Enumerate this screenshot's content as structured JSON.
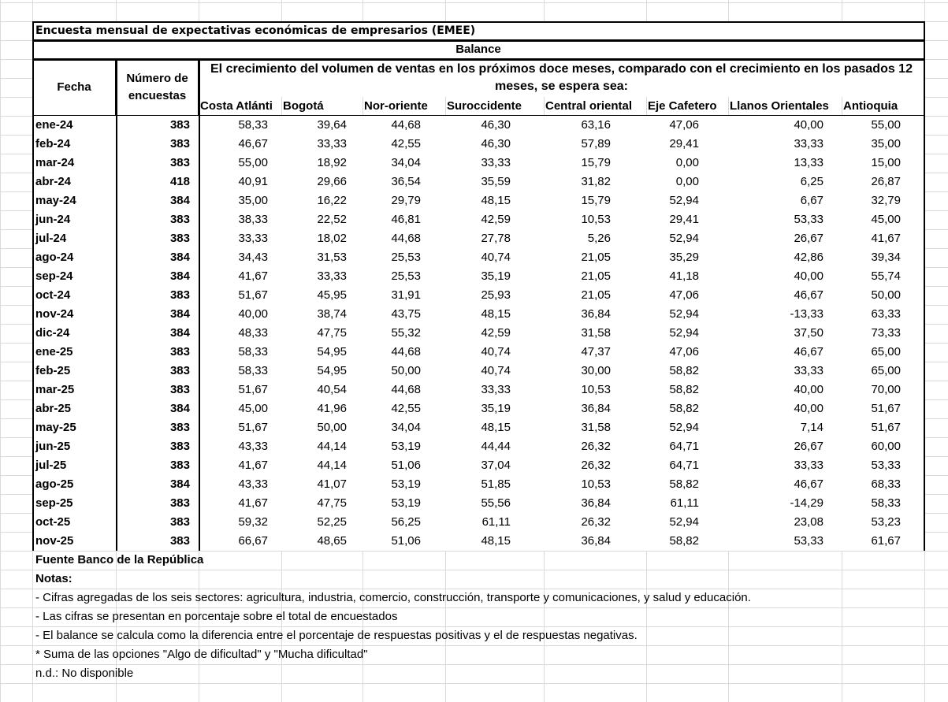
{
  "title": "Encuesta mensual de expectativas económicas de empresarios (EMEE)",
  "table": {
    "group_header": "Balance",
    "columns": [
      "Fecha",
      "Número de encuestas"
    ],
    "subheader": "El crecimiento del volumen de ventas en los próximos doce meses, comparado con el crecimiento en los pasados 12 meses, se espera sea:",
    "regions": [
      "Costa Atlánti",
      "Bogotá",
      "Nor-oriente",
      "Suroccidente",
      "Central oriental",
      "Eje Cafetero",
      "Llanos Orientales",
      "Antioquia"
    ],
    "rows": [
      [
        "ene-24",
        383,
        "58,33",
        "39,64",
        "44,68",
        "46,30",
        "63,16",
        "47,06",
        "40,00",
        "55,00"
      ],
      [
        "feb-24",
        383,
        "46,67",
        "33,33",
        "42,55",
        "46,30",
        "57,89",
        "29,41",
        "33,33",
        "35,00"
      ],
      [
        "mar-24",
        383,
        "55,00",
        "18,92",
        "34,04",
        "33,33",
        "15,79",
        "0,00",
        "13,33",
        "15,00"
      ],
      [
        "abr-24",
        418,
        "40,91",
        "29,66",
        "36,54",
        "35,59",
        "31,82",
        "0,00",
        "6,25",
        "26,87"
      ],
      [
        "may-24",
        384,
        "35,00",
        "16,22",
        "29,79",
        "48,15",
        "15,79",
        "52,94",
        "6,67",
        "32,79"
      ],
      [
        "jun-24",
        383,
        "38,33",
        "22,52",
        "46,81",
        "42,59",
        "10,53",
        "29,41",
        "53,33",
        "45,00"
      ],
      [
        "jul-24",
        383,
        "33,33",
        "18,02",
        "44,68",
        "27,78",
        "5,26",
        "52,94",
        "26,67",
        "41,67"
      ],
      [
        "ago-24",
        384,
        "34,43",
        "31,53",
        "25,53",
        "40,74",
        "21,05",
        "35,29",
        "42,86",
        "39,34"
      ],
      [
        "sep-24",
        384,
        "41,67",
        "33,33",
        "25,53",
        "35,19",
        "21,05",
        "41,18",
        "40,00",
        "55,74"
      ],
      [
        "oct-24",
        383,
        "51,67",
        "45,95",
        "31,91",
        "25,93",
        "21,05",
        "47,06",
        "46,67",
        "50,00"
      ],
      [
        "nov-24",
        384,
        "40,00",
        "38,74",
        "43,75",
        "48,15",
        "36,84",
        "52,94",
        "-13,33",
        "63,33"
      ],
      [
        "dic-24",
        384,
        "48,33",
        "47,75",
        "55,32",
        "42,59",
        "31,58",
        "52,94",
        "37,50",
        "73,33"
      ],
      [
        "ene-25",
        383,
        "58,33",
        "54,95",
        "44,68",
        "40,74",
        "47,37",
        "47,06",
        "46,67",
        "65,00"
      ],
      [
        "feb-25",
        383,
        "58,33",
        "54,95",
        "50,00",
        "40,74",
        "30,00",
        "58,82",
        "33,33",
        "65,00"
      ],
      [
        "mar-25",
        383,
        "51,67",
        "40,54",
        "44,68",
        "33,33",
        "10,53",
        "58,82",
        "40,00",
        "70,00"
      ],
      [
        "abr-25",
        384,
        "45,00",
        "41,96",
        "42,55",
        "35,19",
        "36,84",
        "58,82",
        "40,00",
        "51,67"
      ],
      [
        "may-25",
        383,
        "51,67",
        "50,00",
        "34,04",
        "48,15",
        "31,58",
        "52,94",
        "7,14",
        "51,67"
      ],
      [
        "jun-25",
        383,
        "43,33",
        "44,14",
        "53,19",
        "44,44",
        "26,32",
        "64,71",
        "26,67",
        "60,00"
      ],
      [
        "jul-25",
        383,
        "41,67",
        "44,14",
        "51,06",
        "37,04",
        "26,32",
        "64,71",
        "33,33",
        "53,33"
      ],
      [
        "ago-25",
        384,
        "43,33",
        "41,07",
        "53,19",
        "51,85",
        "10,53",
        "58,82",
        "46,67",
        "68,33"
      ],
      [
        "sep-25",
        383,
        "41,67",
        "47,75",
        "53,19",
        "55,56",
        "36,84",
        "61,11",
        "-14,29",
        "58,33"
      ],
      [
        "oct-25",
        383,
        "59,32",
        "52,25",
        "56,25",
        "61,11",
        "26,32",
        "52,94",
        "23,08",
        "53,23"
      ],
      [
        "nov-25",
        383,
        "66,67",
        "48,65",
        "51,06",
        "48,15",
        "36,84",
        "58,82",
        "53,33",
        "61,67"
      ]
    ]
  },
  "footer": {
    "source": "Fuente Banco de la República",
    "notes_title": "Notas:",
    "notes": [
      "- Cifras agregadas de los seis sectores: agricultura, industria, comercio, construcción, transporte y comunicaciones, y salud y educación.",
      "- Las cifras se presentan en porcentaje sobre el total de encuestados",
      "- El balance se calcula como la diferencia entre el porcentaje de respuestas positivas y el de respuestas negativas.",
      "* Suma de las opciones \"Algo de dificultad\" y \"Mucha dificultad\"",
      "n.d.: No disponible"
    ]
  }
}
